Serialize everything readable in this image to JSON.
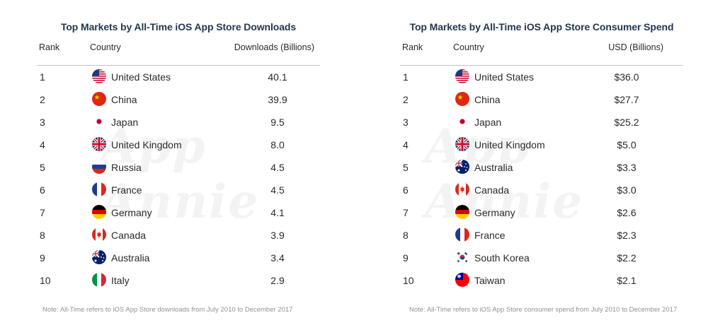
{
  "watermark": "App Annie",
  "chart_data": [
    {
      "type": "table",
      "title": "Top Markets by All-Time iOS App Store Downloads",
      "columns": [
        "Rank",
        "Country",
        "Downloads (Billions)"
      ],
      "rows": [
        {
          "rank": "1",
          "country": "United States",
          "flag": "us-flag-icon",
          "value": "40.1"
        },
        {
          "rank": "2",
          "country": "China",
          "flag": "cn-flag-icon",
          "value": "39.9"
        },
        {
          "rank": "3",
          "country": "Japan",
          "flag": "jp-flag-icon",
          "value": "9.5"
        },
        {
          "rank": "4",
          "country": "United Kingdom",
          "flag": "gb-flag-icon",
          "value": "8.0"
        },
        {
          "rank": "5",
          "country": "Russia",
          "flag": "ru-flag-icon",
          "value": "4.5"
        },
        {
          "rank": "6",
          "country": "France",
          "flag": "fr-flag-icon",
          "value": "4.5"
        },
        {
          "rank": "7",
          "country": "Germany",
          "flag": "de-flag-icon",
          "value": "4.1"
        },
        {
          "rank": "8",
          "country": "Canada",
          "flag": "ca-flag-icon",
          "value": "3.9"
        },
        {
          "rank": "9",
          "country": "Australia",
          "flag": "au-flag-icon",
          "value": "3.4"
        },
        {
          "rank": "10",
          "country": "Italy",
          "flag": "it-flag-icon",
          "value": "2.9"
        }
      ],
      "note": "Note: All-Time refers to iOS App Store downloads from July 2010 to December 2017"
    },
    {
      "type": "table",
      "title": "Top Markets by All-Time iOS App Store Consumer Spend",
      "columns": [
        "Rank",
        "Country",
        "USD (Billions)"
      ],
      "rows": [
        {
          "rank": "1",
          "country": "United States",
          "flag": "us-flag-icon",
          "value": "$36.0"
        },
        {
          "rank": "2",
          "country": "China",
          "flag": "cn-flag-icon",
          "value": "$27.7"
        },
        {
          "rank": "3",
          "country": "Japan",
          "flag": "jp-flag-icon",
          "value": "$25.2"
        },
        {
          "rank": "4",
          "country": "United Kingdom",
          "flag": "gb-flag-icon",
          "value": "$5.0"
        },
        {
          "rank": "5",
          "country": "Australia",
          "flag": "au-flag-icon",
          "value": "$3.3"
        },
        {
          "rank": "6",
          "country": "Canada",
          "flag": "ca-flag-icon",
          "value": "$3.0"
        },
        {
          "rank": "7",
          "country": "Germany",
          "flag": "de-flag-icon",
          "value": "$2.6"
        },
        {
          "rank": "8",
          "country": "France",
          "flag": "fr-flag-icon",
          "value": "$2.3"
        },
        {
          "rank": "9",
          "country": "South Korea",
          "flag": "kr-flag-icon",
          "value": "$2.2"
        },
        {
          "rank": "10",
          "country": "Taiwan",
          "flag": "tw-flag-icon",
          "value": "$2.1"
        }
      ],
      "note": "Note: All-Time refers to iOS App Store consumer spend from July 2010 to December 2017"
    }
  ],
  "colors": {
    "title": "#23384f",
    "rule": "#bfc3c8",
    "note": "#8d9298",
    "watermark": "#f3f3f3"
  }
}
